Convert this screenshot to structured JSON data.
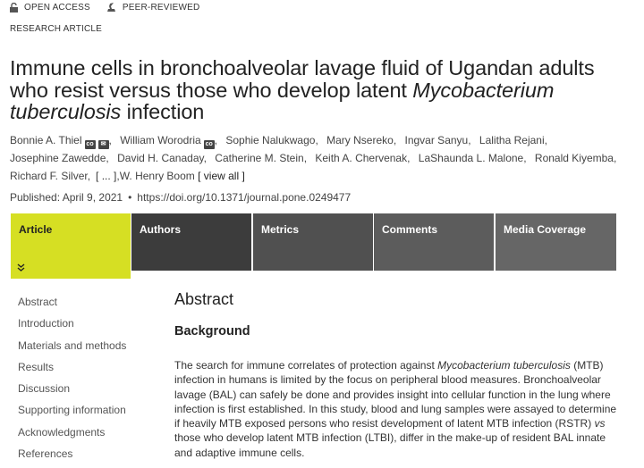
{
  "badges": {
    "open_access": "OPEN ACCESS",
    "peer_reviewed": "PEER-REVIEWED",
    "open_icon": "unlock-icon",
    "peer_icon": "peer-review-icon"
  },
  "article_type": "RESEARCH ARTICLE",
  "title": {
    "line_part1": "Immune cells in bronchoalveolar lavage fluid of Ugandan adults who resist versus those who develop latent ",
    "italic": "Mycobacterium tuberculosis",
    "line_part2": " infection"
  },
  "authors": [
    {
      "name": "Bonnie A. Thiel",
      "icons": [
        "co",
        "env"
      ],
      "sep": ","
    },
    {
      "name": "William Worodria",
      "icons": [
        "co"
      ],
      "sep": ","
    },
    {
      "name": "Sophie Nalukwago",
      "sep": ","
    },
    {
      "name": "Mary Nsereko",
      "sep": ","
    },
    {
      "name": "Ingvar Sanyu",
      "sep": ","
    },
    {
      "name": "Lalitha Rejani",
      "sep": ","
    },
    {
      "name": "Josephine Zawedde",
      "sep": ","
    },
    {
      "name": "David H. Canaday",
      "sep": ","
    },
    {
      "name": "Catherine M. Stein",
      "sep": ","
    },
    {
      "name": "Keith A. Chervenak",
      "sep": ","
    },
    {
      "name": "LaShaunda L. Malone",
      "sep": ","
    },
    {
      "name": "Ronald Kiyemba",
      "sep": ","
    },
    {
      "name": "Richard F. Silver",
      "sep": ","
    }
  ],
  "authors_more": "[ ... ]",
  "authors_last": "W. Henry Boom",
  "view_all": "[ view all ]",
  "icon_co_text": "co",
  "published": "Published: April 9, 2021",
  "doi": "https://doi.org/10.1371/journal.pone.0249477",
  "tabs": [
    {
      "label": "Article",
      "active": true
    },
    {
      "label": "Authors"
    },
    {
      "label": "Metrics"
    },
    {
      "label": "Comments"
    },
    {
      "label": "Media Coverage"
    }
  ],
  "sidebar": [
    "Abstract",
    "Introduction",
    "Materials and methods",
    "Results",
    "Discussion",
    "Supporting information",
    "Acknowledgments",
    "References"
  ],
  "abstract": {
    "heading": "Abstract",
    "subheading": "Background",
    "p1": "The search for immune correlates of protection against ",
    "p1_italic": "Mycobacterium tuberculosis",
    "p2": " (MTB) infection in humans is limited by the focus on peripheral blood measures. Bronchoalveolar lavage (BAL) can safely be done and provides insight into cellular function in the lung where infection is first established. In this study, blood and lung samples were assayed to determine if heavily MTB exposed persons who resist development of latent MTB infection (RSTR) ",
    "p2_italic": "vs",
    "p3": " those who develop latent MTB infection (LTBI), differ in the make-up of resident BAL innate and adaptive immune cells."
  },
  "colors": {
    "active_tab": "#d6df23",
    "tab_dark": "#3c3c3c"
  }
}
